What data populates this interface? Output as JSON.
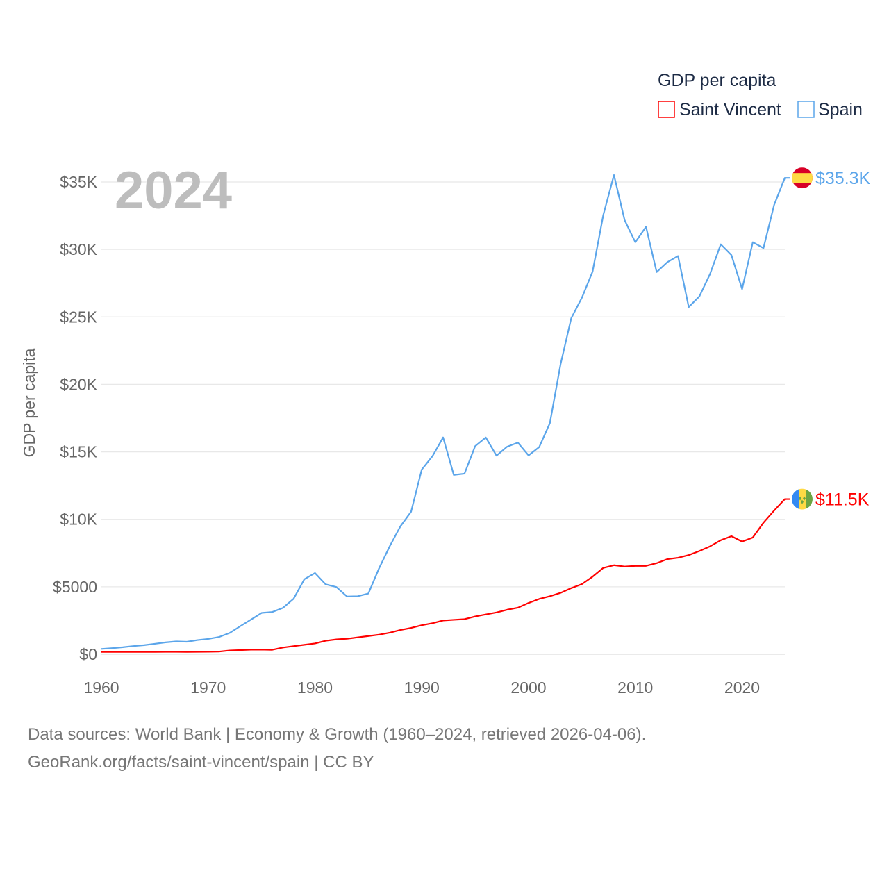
{
  "chart_data": {
    "type": "line",
    "title": "GDP per capita",
    "year_label": "2024",
    "xlabel": "",
    "ylabel": "GDP per capita",
    "xlim": [
      1960,
      2024
    ],
    "ylim": [
      0,
      35000
    ],
    "grid": true,
    "legend_placement": "top-right",
    "x_ticks": [
      {
        "value": 1960,
        "label": "1960"
      },
      {
        "value": 1970,
        "label": "1970"
      },
      {
        "value": 1980,
        "label": "1980"
      },
      {
        "value": 1990,
        "label": "1990"
      },
      {
        "value": 2000,
        "label": "2000"
      },
      {
        "value": 2010,
        "label": "2010"
      },
      {
        "value": 2020,
        "label": "2020"
      }
    ],
    "y_ticks": [
      {
        "value": 0,
        "label": "$0"
      },
      {
        "value": 5000,
        "label": "$5000"
      },
      {
        "value": 10000,
        "label": "$10K"
      },
      {
        "value": 15000,
        "label": "$15K"
      },
      {
        "value": 20000,
        "label": "$20K"
      },
      {
        "value": 25000,
        "label": "$25K"
      },
      {
        "value": 30000,
        "label": "$30K"
      },
      {
        "value": 35000,
        "label": "$35K"
      }
    ],
    "x_start": 1960,
    "series": [
      {
        "name": "Saint Vincent",
        "color": "#ff0000",
        "flag": "saint-vincent",
        "end_label": "$11.5K",
        "values": [
          170,
          175,
          175,
          170,
          175,
          175,
          180,
          180,
          175,
          180,
          185,
          195,
          280,
          310,
          340,
          340,
          330,
          500,
          600,
          700,
          800,
          1000,
          1100,
          1150,
          1250,
          1350,
          1450,
          1600,
          1800,
          1950,
          2150,
          2300,
          2500,
          2550,
          2600,
          2800,
          2950,
          3100,
          3300,
          3450,
          3800,
          4100,
          4300,
          4550,
          4900,
          5200,
          5750,
          6400,
          6600,
          6500,
          6550,
          6550,
          6750,
          7050,
          7150,
          7350,
          7650,
          8000,
          8450,
          8750,
          8350,
          8650,
          9750,
          10650,
          11500
        ]
      },
      {
        "name": "Spain",
        "color": "#5ba5ea",
        "flag": "spain",
        "end_label": "$35.3K",
        "values": [
          396,
          451,
          520,
          609,
          675,
          776,
          880,
          951,
          926,
          1051,
          1135,
          1275,
          1575,
          2078,
          2561,
          3062,
          3131,
          3436,
          4114,
          5554,
          6020,
          5181,
          4981,
          4280,
          4300,
          4503,
          6364,
          8003,
          9480,
          10560,
          13689,
          14676,
          16068,
          13291,
          13384,
          15426,
          16063,
          14720,
          15385,
          15686,
          14736,
          15355,
          17133,
          21496,
          24907,
          26429,
          28365,
          32549,
          35510,
          32170,
          30532,
          31678,
          28324,
          29059,
          29513,
          25732,
          26523,
          28186,
          30380,
          29581,
          27063,
          30536,
          30100,
          33300,
          35300
        ]
      }
    ]
  },
  "legend": {
    "title": "GDP per capita",
    "items": [
      "Saint Vincent",
      "Spain"
    ]
  },
  "footer": {
    "line1": "Data sources: World Bank | Economy & Growth (1960–2024, retrieved 2026-04-06).",
    "line2": "GeoRank.org/facts/saint-vincent/spain | CC BY"
  }
}
